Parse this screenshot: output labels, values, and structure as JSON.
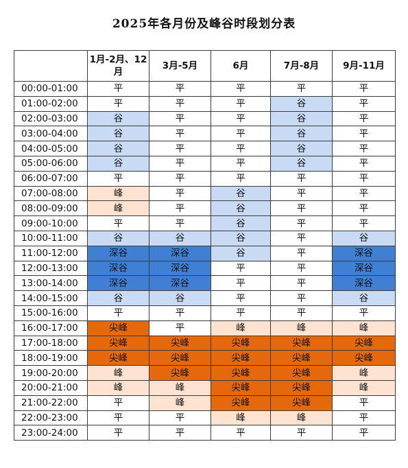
{
  "title": "2025年各月份及峰谷时段划分表",
  "levels": {
    "平": "#ffffff",
    "谷": "#c9daf4",
    "深谷": "#3f7fd4",
    "峰": "#fde3d0",
    "尖峰": "#e5690b"
  },
  "columns": [
    "",
    "1月-2月、12月",
    "3月-5月",
    "6月",
    "7月-8月",
    "9月-11月"
  ],
  "rows": [
    {
      "time": "00:00-01:00",
      "values": [
        "平",
        "平",
        "平",
        "平",
        "平"
      ]
    },
    {
      "time": "01:00-02:00",
      "values": [
        "平",
        "平",
        "平",
        "谷",
        "平"
      ]
    },
    {
      "time": "02:00-03:00",
      "values": [
        "谷",
        "平",
        "平",
        "谷",
        "平"
      ]
    },
    {
      "time": "03:00-04:00",
      "values": [
        "谷",
        "平",
        "平",
        "谷",
        "平"
      ]
    },
    {
      "time": "04:00-05:00",
      "values": [
        "谷",
        "平",
        "平",
        "谷",
        "平"
      ]
    },
    {
      "time": "05:00-06:00",
      "values": [
        "谷",
        "平",
        "平",
        "谷",
        "平"
      ]
    },
    {
      "time": "06:00-07:00",
      "values": [
        "平",
        "平",
        "平",
        "平",
        "平"
      ]
    },
    {
      "time": "07:00-08:00",
      "values": [
        "峰",
        "平",
        "谷",
        "平",
        "平"
      ]
    },
    {
      "time": "08:00-09:00",
      "values": [
        "峰",
        "平",
        "谷",
        "平",
        "平"
      ]
    },
    {
      "time": "09:00-10:00",
      "values": [
        "平",
        "平",
        "谷",
        "平",
        "平"
      ]
    },
    {
      "time": "10:00-11:00",
      "values": [
        "谷",
        "谷",
        "谷",
        "平",
        "谷"
      ]
    },
    {
      "time": "11:00-12:00",
      "values": [
        "深谷",
        "深谷",
        "谷",
        "平",
        "深谷"
      ]
    },
    {
      "time": "12:00-13:00",
      "values": [
        "深谷",
        "深谷",
        "平",
        "平",
        "深谷"
      ]
    },
    {
      "time": "13:00-14:00",
      "values": [
        "深谷",
        "深谷",
        "平",
        "平",
        "深谷"
      ]
    },
    {
      "time": "14:00-15:00",
      "values": [
        "谷",
        "谷",
        "平",
        "平",
        "谷"
      ]
    },
    {
      "time": "15:00-16:00",
      "values": [
        "平",
        "平",
        "平",
        "平",
        "平"
      ]
    },
    {
      "time": "16:00-17:00",
      "values": [
        "尖峰",
        "平",
        "峰",
        "峰",
        "峰"
      ]
    },
    {
      "time": "17:00-18:00",
      "values": [
        "尖峰",
        "尖峰",
        "尖峰",
        "尖峰",
        "尖峰"
      ]
    },
    {
      "time": "18:00-19:00",
      "values": [
        "尖峰",
        "尖峰",
        "尖峰",
        "尖峰",
        "尖峰"
      ]
    },
    {
      "time": "19:00-20:00",
      "values": [
        "峰",
        "尖峰",
        "尖峰",
        "尖峰",
        "峰"
      ]
    },
    {
      "time": "20:00-21:00",
      "values": [
        "峰",
        "峰",
        "尖峰",
        "尖峰",
        "峰"
      ]
    },
    {
      "time": "21:00-22:00",
      "values": [
        "平",
        "峰",
        "尖峰",
        "尖峰",
        "平"
      ]
    },
    {
      "time": "22:00-23:00",
      "values": [
        "平",
        "平",
        "峰",
        "峰",
        "平"
      ]
    },
    {
      "time": "23:00-24:00",
      "values": [
        "平",
        "平",
        "平",
        "平",
        "平"
      ]
    }
  ]
}
